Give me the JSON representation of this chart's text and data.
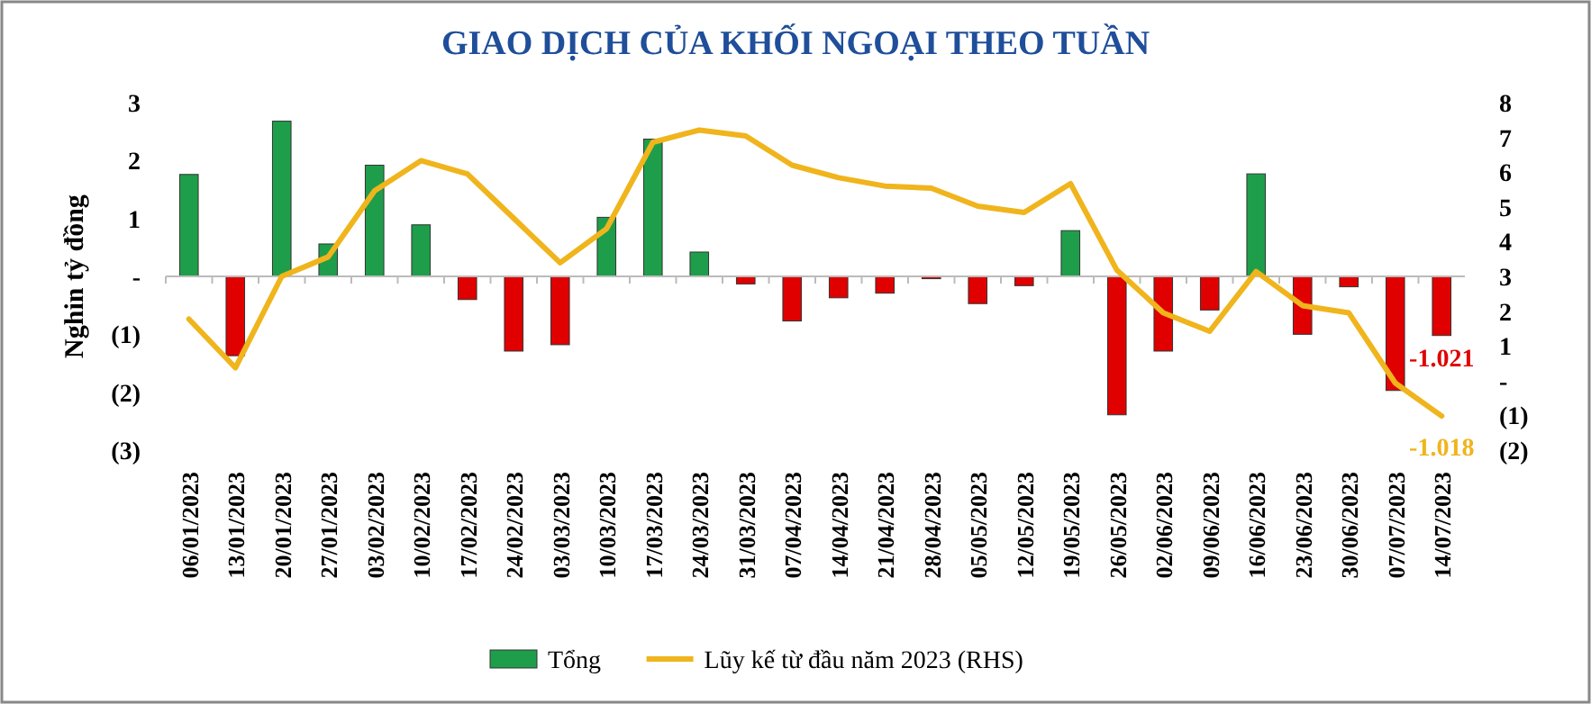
{
  "chart_data": {
    "type": "bar",
    "title": "GIAO DỊCH CỦA KHỐI NGOẠI THEO TUẦN",
    "ylabel": "Nghin tỷ đồng",
    "categories": [
      "06/01/2023",
      "13/01/2023",
      "20/01/2023",
      "27/01/2023",
      "03/02/2023",
      "10/02/2023",
      "17/02/2023",
      "24/02/2023",
      "03/03/2023",
      "10/03/2023",
      "17/03/2023",
      "24/03/2023",
      "31/03/2023",
      "07/04/2023",
      "14/04/2023",
      "21/04/2023",
      "28/04/2023",
      "05/05/2023",
      "12/05/2023",
      "19/05/2023",
      "26/05/2023",
      "02/06/2023",
      "09/06/2023",
      "16/06/2023",
      "23/06/2023",
      "30/06/2023",
      "07/07/2023",
      "14/07/2023"
    ],
    "series": [
      {
        "name": "Tổng",
        "color": "#1e9e4a",
        "colors": [
          "#1e9e4a",
          "#e00000",
          "#1e9e4a",
          "#1e9e4a",
          "#1e9e4a",
          "#1e9e4a",
          "#e00000",
          "#e00000",
          "#e00000",
          "#1e9e4a",
          "#1e9e4a",
          "#1e9e4a",
          "#e00000",
          "#e00000",
          "#e00000",
          "#e00000",
          "#e00000",
          "#e00000",
          "#e00000",
          "#1e9e4a",
          "#e00000",
          "#e00000",
          "#e00000",
          "#1e9e4a",
          "#e00000",
          "#e00000",
          "#e00000",
          "#e00000"
        ],
        "values": [
          1.76,
          -1.37,
          2.68,
          0.56,
          1.92,
          0.89,
          -0.4,
          -1.29,
          -1.18,
          1.02,
          2.37,
          0.42,
          -0.13,
          -0.77,
          -0.37,
          -0.29,
          -0.04,
          -0.47,
          -0.16,
          0.79,
          -2.39,
          -1.29,
          -0.58,
          1.77,
          -1.0,
          -0.18,
          -1.97,
          -1.021
        ],
        "value_labels": [
          null,
          null,
          null,
          null,
          null,
          null,
          null,
          null,
          null,
          null,
          null,
          null,
          null,
          null,
          null,
          null,
          null,
          null,
          null,
          null,
          null,
          null,
          null,
          null,
          null,
          null,
          null,
          "-1.021"
        ]
      },
      {
        "name": "Lũy kế từ đầu năm 2023 (RHS)",
        "type": "line",
        "axis": "y2",
        "color": "#f0b41c",
        "values": [
          1.77,
          0.37,
          3.0,
          3.56,
          5.46,
          6.33,
          5.95,
          4.67,
          3.39,
          4.37,
          6.86,
          7.21,
          7.04,
          6.2,
          5.84,
          5.6,
          5.54,
          5.02,
          4.84,
          5.67,
          3.18,
          1.95,
          1.42,
          3.14,
          2.16,
          1.95,
          -0.07,
          -1.018
        ],
        "value_labels": [
          null,
          null,
          null,
          null,
          null,
          null,
          null,
          null,
          null,
          null,
          null,
          null,
          null,
          null,
          null,
          null,
          null,
          null,
          null,
          null,
          null,
          null,
          null,
          null,
          null,
          null,
          null,
          "-1.018"
        ]
      }
    ],
    "ylim": [
      -3,
      3
    ],
    "yticks": [
      {
        "value": -3,
        "label": "(3)"
      },
      {
        "value": -2,
        "label": "(2)"
      },
      {
        "value": -1,
        "label": "(1)"
      },
      {
        "value": 0,
        "label": "-"
      },
      1,
      2,
      3
    ],
    "y2lim": [
      -2,
      8
    ],
    "y2ticks": [
      {
        "value": -2,
        "label": "(2)"
      },
      {
        "value": -1,
        "label": "(1)"
      },
      {
        "value": 0,
        "label": "-"
      },
      1,
      2,
      3,
      4,
      5,
      6,
      7,
      8
    ],
    "legend": "bottom"
  }
}
